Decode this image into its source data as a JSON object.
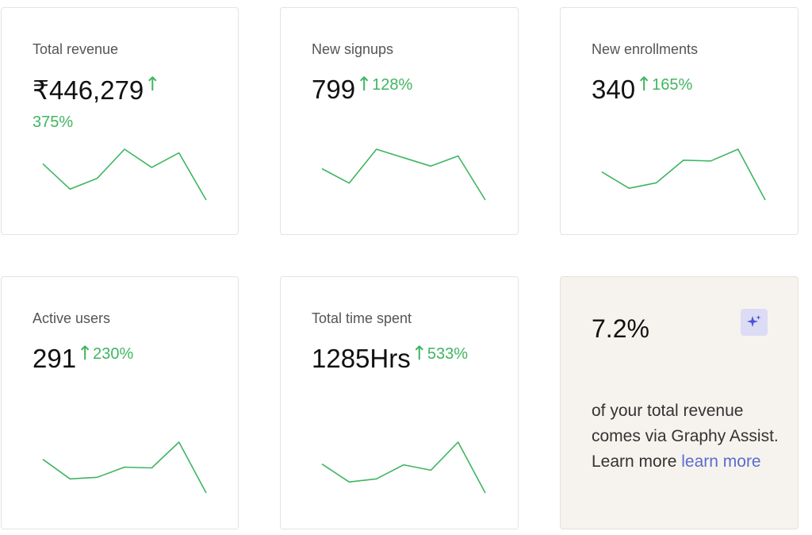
{
  "accent_green": "#3fb560",
  "link_color": "#5a6bd0",
  "cards": [
    {
      "label": "Total revenue",
      "value": "₹446,279",
      "arrow_icon": "arrow-up-icon",
      "change": "375%",
      "trend": [
        5,
        1.5,
        3,
        7,
        4.5,
        6.5,
        0
      ]
    },
    {
      "label": "New signups",
      "value": "799",
      "arrow_icon": "arrow-up-icon",
      "change": "128%",
      "trend": [
        3.7,
        2,
        6,
        5,
        4,
        5.2,
        0
      ]
    },
    {
      "label": "New enrollments",
      "value": "340",
      "arrow_icon": "arrow-up-icon",
      "change": "165%",
      "trend": [
        3.6,
        1.5,
        2.2,
        5.1,
        5,
        6.5,
        0
      ]
    },
    {
      "label": "Active users",
      "value": "291",
      "arrow_icon": "arrow-up-icon",
      "change": "230%",
      "trend": [
        4.3,
        1.8,
        2,
        3.3,
        3.2,
        6.5,
        0
      ]
    },
    {
      "label": "Total time spent",
      "value": "1285Hrs",
      "arrow_icon": "arrow-up-icon",
      "change": "533%",
      "trend": [
        3.7,
        1.4,
        1.8,
        3.6,
        2.9,
        6.5,
        0
      ]
    }
  ],
  "assist": {
    "value": "7.2%",
    "icon": "sparkle-icon",
    "text": "of your total revenue comes via Graphy Assist. Learn more ",
    "link_label": "learn more"
  }
}
